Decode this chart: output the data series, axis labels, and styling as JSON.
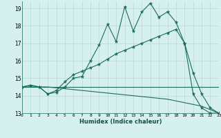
{
  "xlabel": "Humidex (Indice chaleur)",
  "bg_color": "#d6f0f0",
  "grid_color": "#b8d8d8",
  "line_color": "#1a6b5a",
  "xmin": 0,
  "xmax": 23,
  "ymin": 13,
  "ymax": 19.4,
  "yticks": [
    13,
    14,
    15,
    16,
    17,
    18,
    19
  ],
  "xticks": [
    0,
    1,
    2,
    3,
    4,
    5,
    6,
    7,
    8,
    9,
    10,
    11,
    12,
    13,
    14,
    15,
    16,
    17,
    18,
    19,
    20,
    21,
    22,
    23
  ],
  "line1_x": [
    0,
    1,
    2,
    3,
    4,
    5,
    6,
    7,
    8,
    9,
    10,
    11,
    12,
    13,
    14,
    15,
    16,
    17,
    18,
    19,
    20,
    21,
    22,
    23
  ],
  "line1_y": [
    14.5,
    14.6,
    14.5,
    14.1,
    14.2,
    14.5,
    15.0,
    15.1,
    16.0,
    16.9,
    18.1,
    17.1,
    19.1,
    17.7,
    18.8,
    19.3,
    18.5,
    18.8,
    18.2,
    17.0,
    14.1,
    13.3,
    13.0,
    13.0
  ],
  "line2_x": [
    0,
    1,
    2,
    3,
    4,
    5,
    6,
    7,
    8,
    9,
    10,
    11,
    12,
    13,
    14,
    15,
    16,
    17,
    18,
    19,
    20,
    21,
    22,
    23
  ],
  "line2_y": [
    14.5,
    14.6,
    14.5,
    14.1,
    14.3,
    14.8,
    15.2,
    15.4,
    15.6,
    15.8,
    16.1,
    16.4,
    16.6,
    16.8,
    17.0,
    17.2,
    17.4,
    17.6,
    17.8,
    17.0,
    15.3,
    14.1,
    13.3,
    13.0
  ],
  "line3_x": [
    0,
    1,
    2,
    3,
    4,
    5,
    6,
    7,
    8,
    9,
    10,
    11,
    12,
    13,
    14,
    15,
    16,
    17,
    18,
    19,
    20,
    21,
    22,
    23
  ],
  "line3_y": [
    14.5,
    14.5,
    14.5,
    14.5,
    14.45,
    14.4,
    14.35,
    14.3,
    14.25,
    14.2,
    14.15,
    14.1,
    14.05,
    14.0,
    13.95,
    13.9,
    13.85,
    13.8,
    13.7,
    13.6,
    13.5,
    13.4,
    13.2,
    13.0
  ],
  "line4_x": [
    0,
    5,
    9,
    10,
    11,
    12,
    13,
    14,
    15,
    16,
    17,
    18,
    19,
    20,
    21,
    22,
    23
  ],
  "line4_y": [
    14.5,
    14.5,
    14.5,
    14.5,
    14.5,
    14.5,
    14.5,
    14.5,
    14.5,
    14.5,
    14.5,
    14.5,
    14.5,
    14.5,
    14.5,
    14.5,
    14.5
  ]
}
